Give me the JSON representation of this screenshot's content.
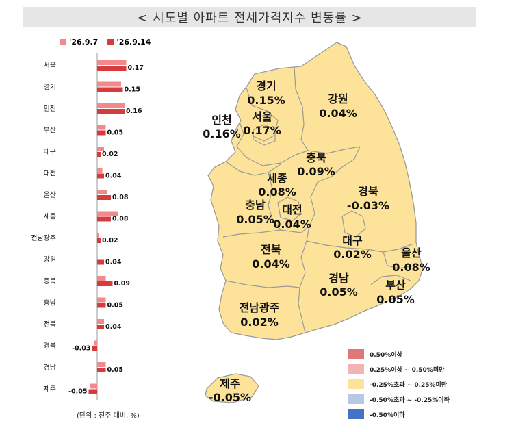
{
  "title": "< 시도별 아파트 전세가격지수 변동률 >",
  "unit_note": "(단위 : 전주 대비, %)",
  "colors": {
    "prev_week": "#f4898b",
    "this_week": "#d63b3e",
    "map_fill": "#fde39a",
    "map_stroke": "#9a9a9a"
  },
  "chart_data": {
    "type": "bar",
    "orientation": "horizontal",
    "categories": [
      "서울",
      "경기",
      "인천",
      "부산",
      "대구",
      "대전",
      "울산",
      "세종",
      "전남광주",
      "강원",
      "충북",
      "충남",
      "전북",
      "경북",
      "경남",
      "제주"
    ],
    "series": [
      {
        "name": "'26.9.7",
        "values": [
          0.17,
          0.14,
          0.16,
          0.05,
          0.04,
          0.03,
          0.06,
          0.12,
          0.01,
          0.0,
          0.05,
          0.05,
          0.04,
          -0.02,
          0.05,
          -0.04
        ]
      },
      {
        "name": "'26.9.14",
        "values": [
          0.17,
          0.15,
          0.16,
          0.05,
          0.02,
          0.04,
          0.08,
          0.08,
          0.02,
          0.04,
          0.09,
          0.05,
          0.04,
          -0.03,
          0.05,
          -0.05
        ]
      }
    ],
    "data_labels": [
      "0.17",
      "0.15",
      "0.16",
      "0.05",
      "0.02",
      "0.04",
      "0.08",
      "0.08",
      "0.02",
      "0.04",
      "0.09",
      "0.05",
      "0.04",
      "-0.03",
      "0.05",
      "-0.05"
    ]
  },
  "map": {
    "regions": [
      {
        "name": "경기",
        "value": "0.15%"
      },
      {
        "name": "인천",
        "value": "0.16%"
      },
      {
        "name": "서울",
        "value": "0.17%"
      },
      {
        "name": "강원",
        "value": "0.04%"
      },
      {
        "name": "충북",
        "value": "0.09%"
      },
      {
        "name": "세종",
        "value": "0.08%"
      },
      {
        "name": "충남",
        "value": "0.05%"
      },
      {
        "name": "대전",
        "value": "0.04%"
      },
      {
        "name": "경북",
        "value": "-0.03%"
      },
      {
        "name": "대구",
        "value": "0.02%"
      },
      {
        "name": "울산",
        "value": "0.08%"
      },
      {
        "name": "전북",
        "value": "0.04%"
      },
      {
        "name": "경남",
        "value": "0.05%"
      },
      {
        "name": "부산",
        "value": "0.05%"
      },
      {
        "name": "전남광주",
        "value": "0.02%"
      },
      {
        "name": "제주",
        "value": "-0.05%"
      }
    ],
    "legend": [
      {
        "label": "0.50%이상",
        "color": "#e0787a"
      },
      {
        "label": "0.25%이상 ~ 0.50%미만",
        "color": "#f2b3b5"
      },
      {
        "label": "-0.25%초과 ~ 0.25%미만",
        "color": "#fde39a"
      },
      {
        "label": "-0.50%초과 ~ -0.25%이하",
        "color": "#b6c8e6"
      },
      {
        "label": "-0.50%이하",
        "color": "#4472c4"
      }
    ]
  }
}
